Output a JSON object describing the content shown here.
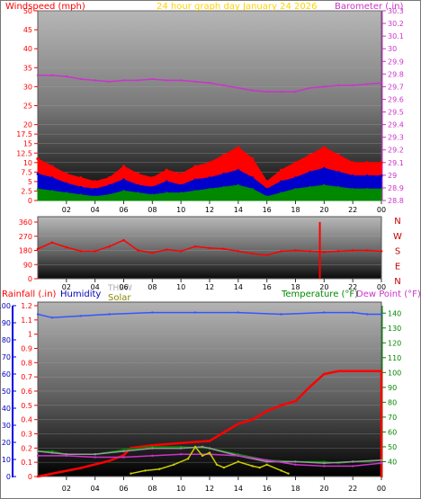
{
  "header": {
    "left_label": "Windspeed (mph)",
    "center_label": "24 hour graph day    January 24 2026",
    "right_label": "Barometer (.in)"
  },
  "bottom_header": {
    "rain_label": "Rainfall (.in)",
    "humidity_label": "Humidity",
    "thsw_label": "THSW",
    "solar_label": "Solar",
    "temp_label": "Temperature (°F)",
    "dew_label": "Dew Point (°F)"
  },
  "colors": {
    "red": "#ff0000",
    "barometer": "#cc33cc",
    "header_yellow": "#ffd200",
    "humidity": "#3355ff",
    "green": "#008800",
    "solar": "#888800",
    "grey": "#999999"
  },
  "chart_data": [
    {
      "type": "line",
      "x_tick_labels": [
        "02",
        "04",
        "06",
        "08",
        "10",
        "12",
        "14",
        "16",
        "18",
        "20",
        "22",
        "00"
      ],
      "left_axis": {
        "label": "Windspeed (mph)",
        "ticks": [
          "0",
          "2.5",
          "5",
          "7.5",
          "10",
          "12.5",
          "15",
          "17.5",
          "20",
          "25",
          "30",
          "35",
          "40",
          "45",
          "50"
        ],
        "ylim": [
          0,
          50
        ]
      },
      "right_axis": {
        "label": "Barometer (.in)",
        "ticks": [
          "28.8",
          "28.9",
          "29",
          "29.1",
          "29.2",
          "29.3",
          "29.4",
          "29.5",
          "29.6",
          "29.7",
          "29.8",
          "29.9",
          "30",
          "30.1",
          "30.2",
          "30.3"
        ],
        "ylim": [
          28.8,
          30.3
        ]
      },
      "x": [
        0,
        1,
        2,
        3,
        4,
        5,
        6,
        7,
        8,
        9,
        10,
        11,
        12,
        13,
        14,
        15,
        16,
        17,
        18,
        19,
        20,
        21,
        22,
        23,
        24
      ],
      "series": [
        {
          "role": "wind_gust",
          "color": "#ff0000",
          "values": [
            11,
            9,
            7,
            6,
            5,
            6,
            9,
            7,
            6,
            8,
            7,
            9,
            10,
            12,
            14,
            11,
            5,
            8,
            10,
            12,
            14,
            12,
            10,
            10,
            10
          ]
        },
        {
          "role": "wind_avg",
          "color": "#0000cc",
          "values": [
            7,
            6,
            4.5,
            3.5,
            3,
            4,
            5.5,
            4,
            3.5,
            5,
            4,
            5.5,
            6,
            7,
            8,
            6,
            3,
            5,
            6,
            7.5,
            8.5,
            7.5,
            6.5,
            6.5,
            6.5
          ]
        },
        {
          "role": "wind_low",
          "color": "#008800",
          "values": [
            3,
            2.5,
            2,
            1.5,
            1,
            1.5,
            2.5,
            2,
            1.5,
            2,
            2,
            2.5,
            3,
            3.5,
            4,
            3,
            1,
            2,
            3,
            3.5,
            4,
            3.5,
            3,
            3,
            3
          ]
        },
        {
          "role": "barometer",
          "color": "#cc33cc",
          "axis": "right",
          "values": [
            29.79,
            29.79,
            29.78,
            29.76,
            29.75,
            29.74,
            29.75,
            29.75,
            29.76,
            29.75,
            29.75,
            29.74,
            29.73,
            29.71,
            29.69,
            29.67,
            29.66,
            29.66,
            29.66,
            29.69,
            29.7,
            29.71,
            29.71,
            29.72,
            29.73
          ]
        }
      ]
    },
    {
      "type": "line",
      "left_axis": {
        "ticks": [
          "360",
          "270",
          "180",
          "90",
          "0"
        ],
        "ylim": [
          0,
          360
        ]
      },
      "right_labels": [
        "N",
        "W",
        "S",
        "E",
        "N"
      ],
      "x_tick_labels": [
        "02",
        "04",
        "06",
        "08",
        "10",
        "12",
        "14",
        "16",
        "18",
        "20",
        "22",
        "00"
      ],
      "series": [
        {
          "role": "wind_direction",
          "color": "#ff0000",
          "x": [
            0,
            1,
            2,
            3,
            4,
            5,
            6,
            7,
            8,
            9,
            10,
            11,
            12,
            13,
            14,
            15,
            16,
            17,
            18,
            19,
            20,
            21,
            22,
            23,
            24
          ],
          "values": [
            190,
            230,
            200,
            175,
            175,
            205,
            245,
            180,
            165,
            185,
            175,
            205,
            195,
            190,
            175,
            160,
            150,
            175,
            180,
            175,
            170,
            175,
            180,
            180,
            175
          ]
        }
      ],
      "annotation": {
        "at_x": 19.7,
        "spans": [
          0,
          360
        ],
        "color": "#ff0000"
      }
    },
    {
      "type": "line",
      "x_tick_labels": [
        "02",
        "04",
        "06",
        "08",
        "10",
        "12",
        "14",
        "16",
        "18",
        "20",
        "22",
        "00"
      ],
      "left_axis": {
        "label": "Rainfall (.in)",
        "ticks": [
          "0",
          "0.1",
          "0.2",
          "0.3",
          "0.4",
          "0.5",
          "0.6",
          "0.7",
          "0.8",
          "0.9",
          "1",
          "1.1",
          "1.2"
        ],
        "ylim": [
          0,
          1.2
        ]
      },
      "humidity_axis": {
        "label": "Humidity",
        "ticks": [
          "0",
          "10",
          "20",
          "30",
          "40",
          "50",
          "60",
          "70",
          "80",
          "90",
          "100"
        ],
        "ylim": [
          0,
          100
        ]
      },
      "right_axis": {
        "label": "Temperature (°F)",
        "ticks": [
          "40",
          "50",
          "60",
          "70",
          "80",
          "90",
          "100",
          "110",
          "120",
          "130",
          "140"
        ],
        "ylim": [
          30,
          145
        ]
      },
      "series": [
        {
          "role": "rainfall",
          "color": "#ff0000",
          "axis": "rain",
          "x": [
            0,
            3,
            5,
            6,
            6.5,
            8,
            12,
            14,
            15,
            16,
            17,
            18,
            19,
            20,
            21,
            22,
            24
          ],
          "values": [
            0.0,
            0.06,
            0.11,
            0.15,
            0.2,
            0.22,
            0.25,
            0.37,
            0.4,
            0.46,
            0.5,
            0.53,
            0.63,
            0.72,
            0.74,
            0.74,
            0.74
          ]
        },
        {
          "role": "rain_drop_end",
          "color": "#ff0000",
          "axis": "rain",
          "x": [
            24,
            24
          ],
          "values": [
            0.74,
            0.0
          ]
        },
        {
          "role": "humidity",
          "color": "#3355ff",
          "axis": "humidity",
          "x": [
            0,
            1,
            3,
            5,
            8,
            11,
            14,
            17,
            20,
            22,
            23,
            24
          ],
          "values": [
            95,
            93,
            94,
            95,
            96,
            96,
            96,
            95,
            96,
            96,
            95,
            95
          ]
        },
        {
          "role": "temperature",
          "color": "#008800",
          "axis": "right",
          "x": [
            0,
            1,
            2,
            4,
            6,
            8,
            10,
            12,
            14,
            16,
            18,
            20,
            21,
            22,
            23,
            24
          ],
          "values": [
            47,
            47,
            45,
            45,
            48,
            50,
            50,
            49,
            45,
            41,
            40,
            40,
            39,
            40,
            40,
            41
          ]
        },
        {
          "role": "thsw",
          "color": "#999999",
          "axis": "right",
          "x": [
            0,
            1,
            2,
            4,
            6,
            8,
            10,
            11.5,
            12,
            14,
            16,
            18,
            20,
            22,
            24
          ],
          "values": [
            47,
            46,
            45,
            45,
            47,
            49,
            49,
            50,
            49,
            44,
            40,
            40,
            39,
            40,
            41
          ]
        },
        {
          "role": "dew_point",
          "color": "#cc33cc",
          "axis": "right",
          "x": [
            0,
            2,
            4,
            6,
            8,
            10,
            12,
            14,
            16,
            18,
            20,
            22,
            24
          ],
          "values": [
            44,
            44,
            43,
            43,
            44,
            45,
            45,
            44,
            41,
            38,
            37,
            37,
            39
          ]
        },
        {
          "role": "solar",
          "color": "#cccc00",
          "axis": "right",
          "x": [
            6.5,
            7.5,
            8.5,
            9.5,
            10.5,
            11,
            11.5,
            12,
            12.5,
            13,
            14,
            15,
            15.5,
            16,
            17,
            17.5
          ],
          "values": [
            32,
            34,
            35,
            38,
            42,
            50,
            44,
            46,
            38,
            36,
            40,
            37,
            36,
            38,
            34,
            32
          ]
        }
      ]
    }
  ]
}
